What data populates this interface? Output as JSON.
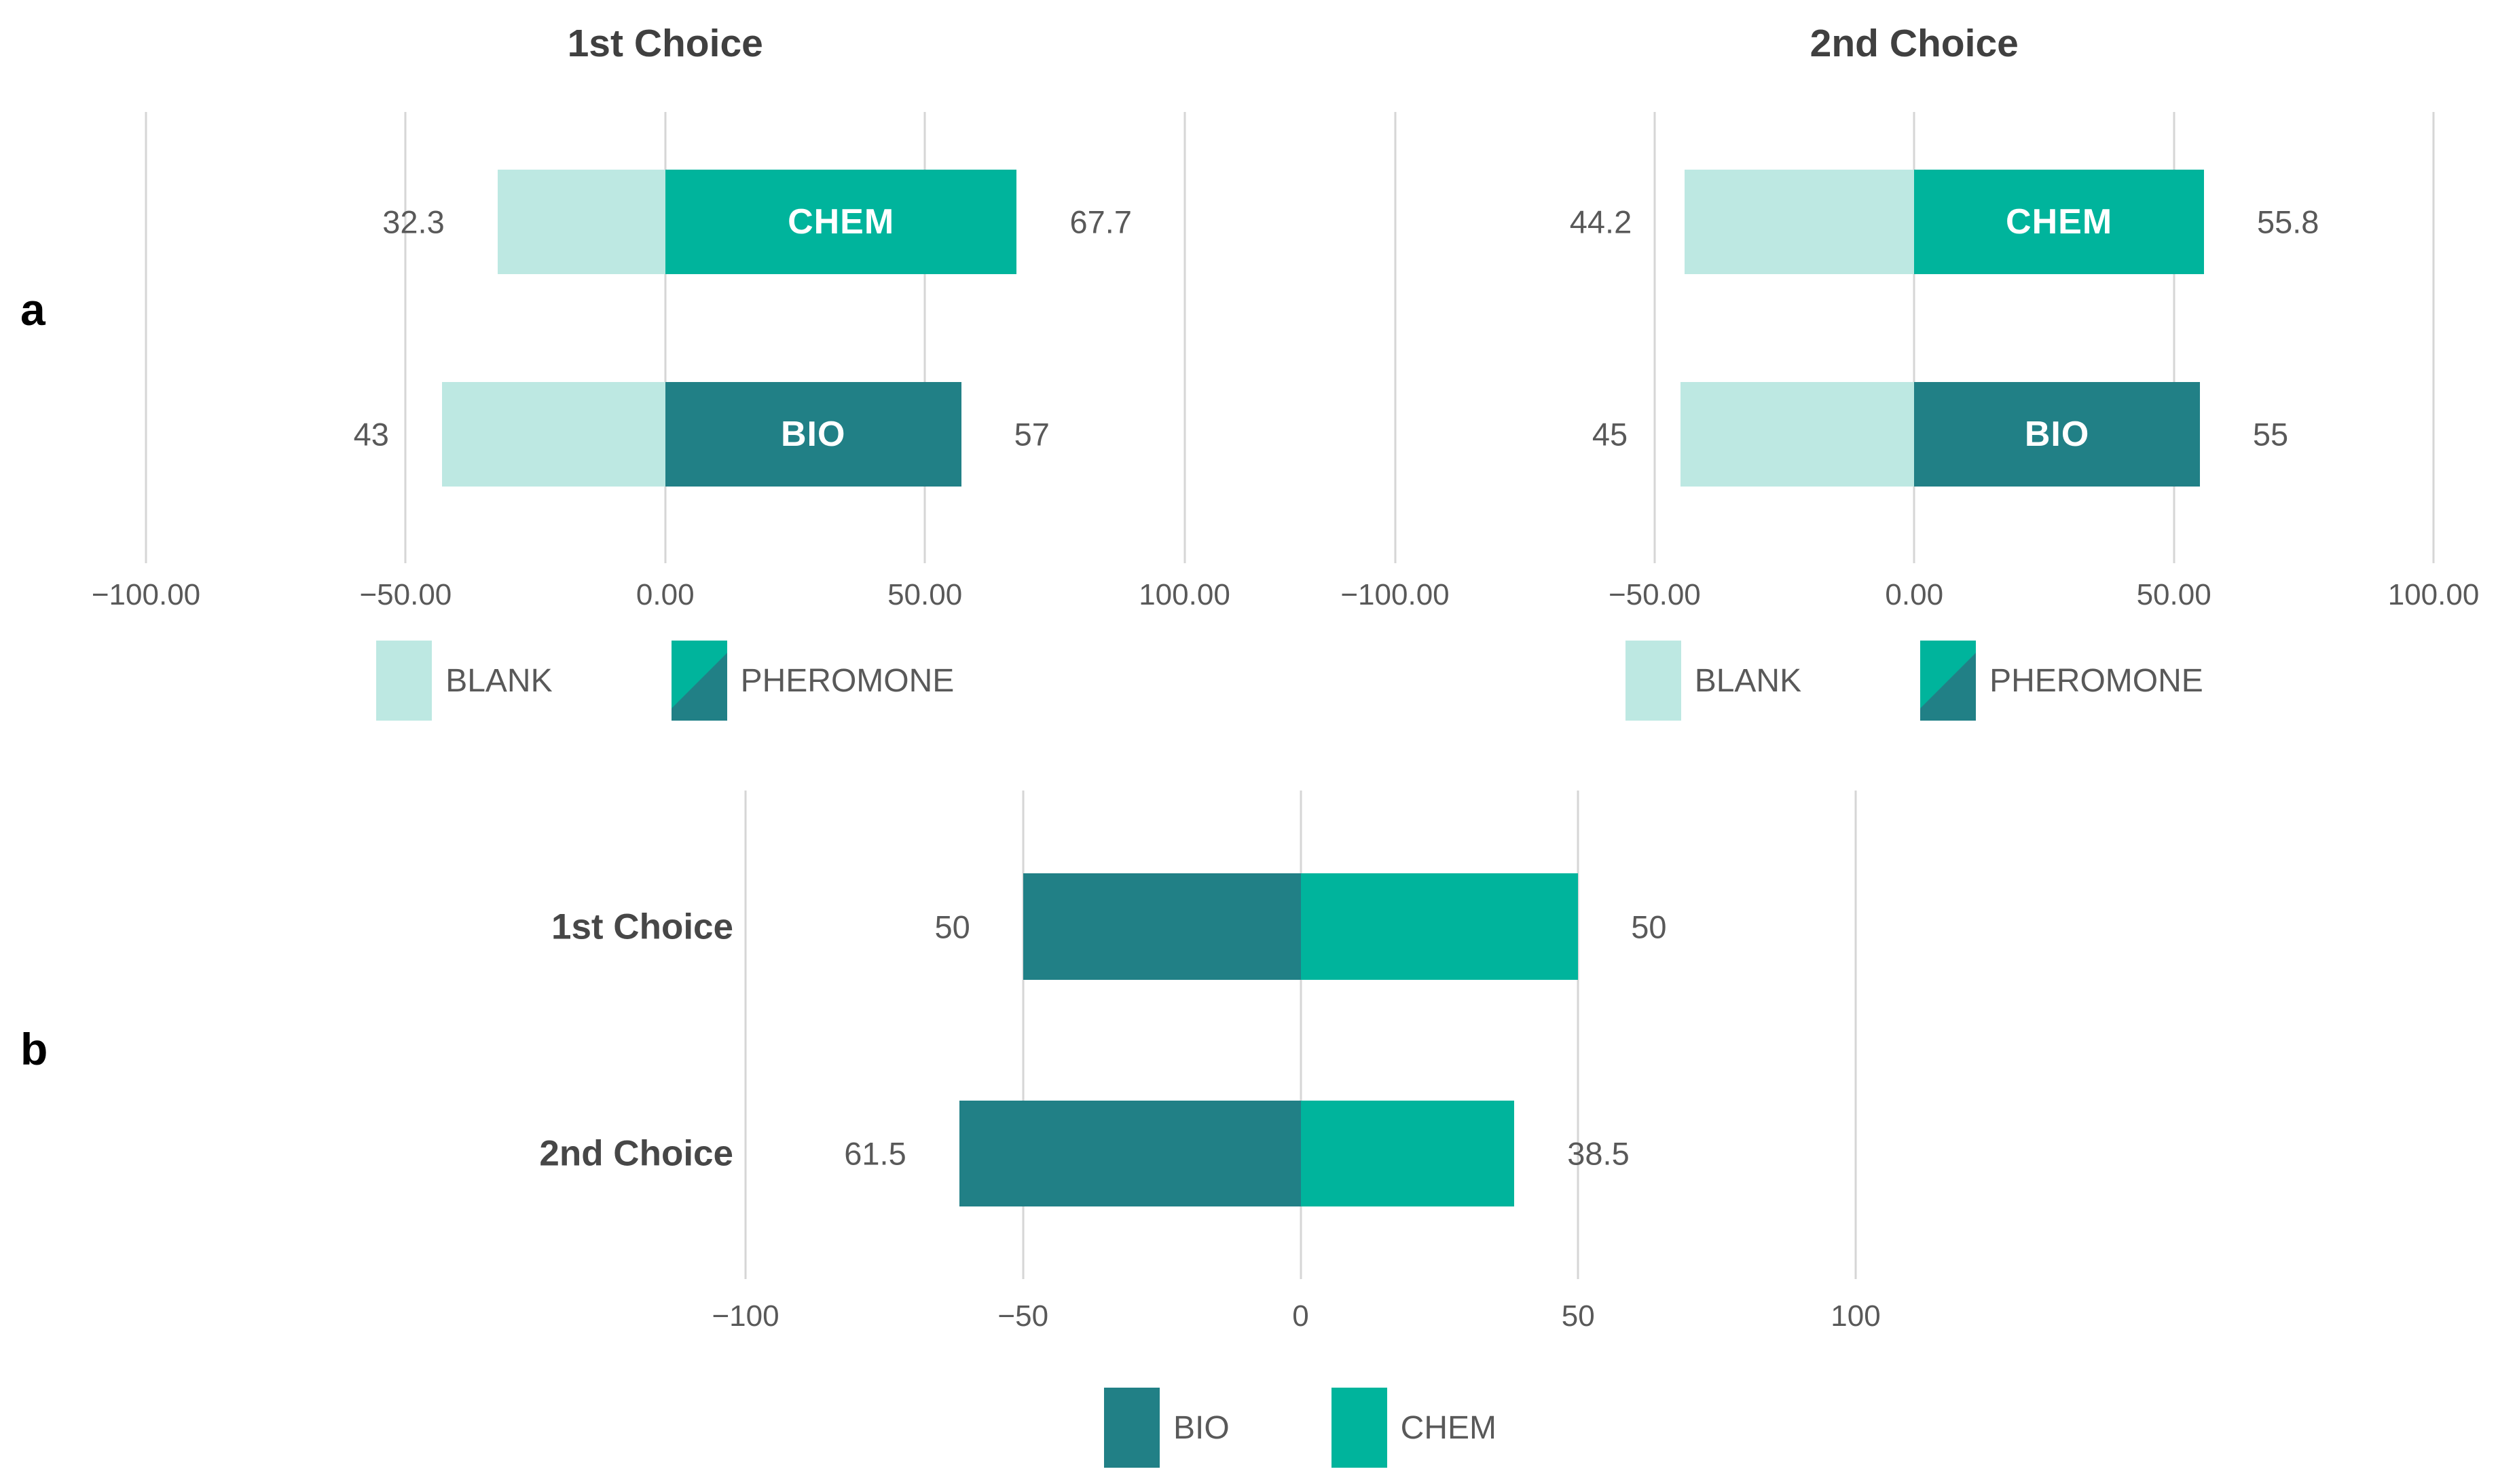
{
  "panel_labels": {
    "a": "a",
    "b": "b"
  },
  "colors": {
    "blank": "#bde8e2",
    "chem": "#00b49c",
    "bio": "#218086",
    "gridline": "#d6d6d6",
    "value_text": "#595959",
    "title_text": "#404040"
  },
  "chart_data": [
    {
      "type": "bar",
      "variant": "horizontal-diverging-stacked",
      "title": "1st Choice",
      "xlim": [
        -100,
        100
      ],
      "grid": true,
      "legend_position": "bottom",
      "axis_tick_labels": [
        "−100.00",
        "−50.00",
        "0.00",
        "50.00",
        "100.00"
      ],
      "rows": [
        {
          "label": "CHEM",
          "blank": 32.3,
          "pheromone": 67.7,
          "blank_label": "32.3",
          "pheromone_label": "67.7"
        },
        {
          "label": "BIO",
          "blank": 43,
          "pheromone": 57,
          "blank_label": "43",
          "pheromone_label": "57"
        }
      ],
      "legend": [
        {
          "label": "BLANK",
          "color": "#bde8e2"
        },
        {
          "label": "PHEROMONE",
          "colors": [
            "#00b49c",
            "#218086"
          ]
        }
      ]
    },
    {
      "type": "bar",
      "variant": "horizontal-diverging-stacked",
      "title": "2nd Choice",
      "xlim": [
        -100,
        100
      ],
      "grid": true,
      "legend_position": "bottom",
      "axis_tick_labels": [
        "−100.00",
        "−50.00",
        "0.00",
        "50.00",
        "100.00"
      ],
      "rows": [
        {
          "label": "CHEM",
          "blank": 44.2,
          "pheromone": 55.8,
          "blank_label": "44.2",
          "pheromone_label": "55.8"
        },
        {
          "label": "BIO",
          "blank": 45,
          "pheromone": 55,
          "blank_label": "45",
          "pheromone_label": "55"
        }
      ],
      "legend": [
        {
          "label": "BLANK",
          "color": "#bde8e2"
        },
        {
          "label": "PHEROMONE",
          "colors": [
            "#00b49c",
            "#218086"
          ]
        }
      ]
    },
    {
      "type": "bar",
      "variant": "horizontal-diverging-stacked",
      "title": "",
      "xlim": [
        -100,
        100
      ],
      "grid": true,
      "legend_position": "bottom",
      "axis_tick_labels": [
        "−100",
        "−50",
        "0",
        "50",
        "100"
      ],
      "rows": [
        {
          "label": "1st Choice",
          "bio": 50,
          "chem": 50,
          "bio_label": "50",
          "chem_label": "50"
        },
        {
          "label": "2nd Choice",
          "bio": 61.5,
          "chem": 38.5,
          "bio_label": "61.5",
          "chem_label": "38.5"
        }
      ],
      "legend": [
        {
          "label": "BIO",
          "color": "#218086"
        },
        {
          "label": "CHEM",
          "color": "#00b49c"
        }
      ]
    }
  ]
}
